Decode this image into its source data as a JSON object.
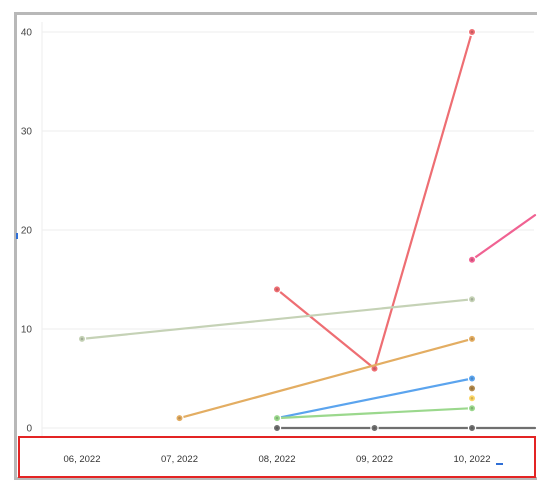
{
  "chart_data": {
    "type": "line",
    "title": "",
    "xlabel": "",
    "ylabel": "",
    "categories": [
      "06, 2022",
      "07, 2022",
      "08, 2022",
      "09, 2022",
      "10, 2022"
    ],
    "ylim": [
      0,
      40
    ],
    "yticks": [
      0,
      10,
      20,
      30,
      40
    ],
    "grid": true,
    "legend": "none",
    "highlight": {
      "target": "x-axis-labels",
      "color": "#e32424"
    },
    "series": [
      {
        "color": "#ee6e73",
        "values": [
          null,
          null,
          14,
          6,
          40
        ]
      },
      {
        "color": "#f06292",
        "values": [
          null,
          null,
          null,
          null,
          17
        ],
        "extends_past_last_category": true,
        "continues_to": 21.5
      },
      {
        "color": "#c5d2b6",
        "values": [
          9,
          null,
          null,
          null,
          13
        ]
      },
      {
        "color": "#e3ad62",
        "values": [
          null,
          1,
          null,
          null,
          9
        ]
      },
      {
        "color": "#5ba4ee",
        "values": [
          null,
          null,
          1,
          null,
          5
        ]
      },
      {
        "color": "#b38a4d",
        "values": [
          null,
          null,
          null,
          null,
          4
        ]
      },
      {
        "color": "#fcd666",
        "values": [
          null,
          null,
          null,
          null,
          3
        ]
      },
      {
        "color": "#9bd88d",
        "values": [
          null,
          null,
          1,
          null,
          2
        ]
      },
      {
        "color": "#6f6f6f",
        "values": [
          null,
          null,
          0,
          0,
          0
        ],
        "extends_past_last_category": true,
        "continues_to": 0
      }
    ]
  }
}
